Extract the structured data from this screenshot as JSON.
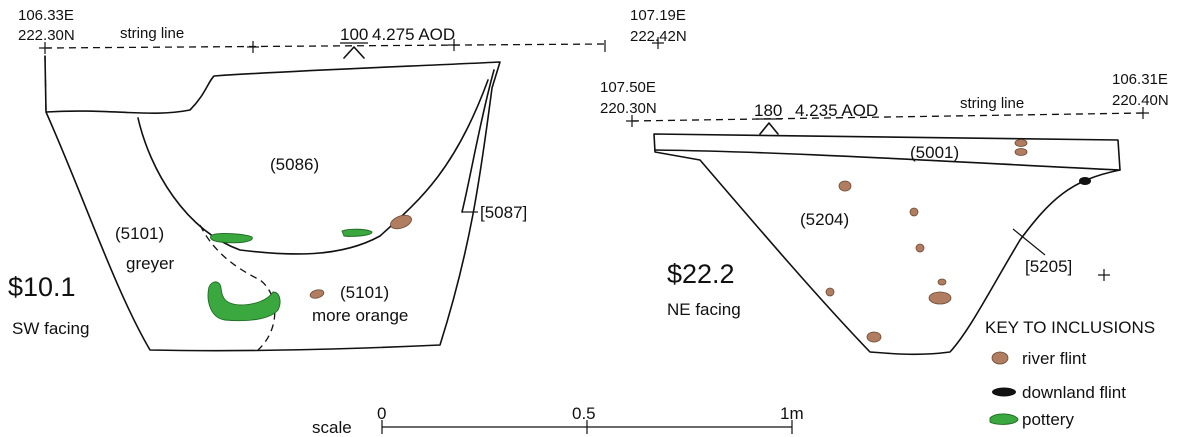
{
  "section_sw": {
    "id": "$10.1",
    "facing": "SW facing",
    "left_coord_e": "106.33E",
    "left_coord_n": "222.30N",
    "right_coord_e": "107.19E",
    "right_coord_n": "222.42N",
    "string_line": "string line",
    "datum_number": "100",
    "datum_level": "4.275 AOD",
    "fill_upper": "(5086)",
    "fill_lower_left": "(5101)",
    "fill_lower_left_note": "greyer",
    "fill_lower_right": "(5101)",
    "fill_lower_right_note": "more orange",
    "cut": "[5087]"
  },
  "section_ne": {
    "id": "$22.2",
    "facing": "NE facing",
    "left_coord_e": "107.50E",
    "left_coord_n": "220.30N",
    "right_coord_e": "106.31E",
    "right_coord_n": "220.40N",
    "string_line": "string line",
    "datum_number": "180",
    "datum_level": "4.235 AOD",
    "fill_upper": "(5001)",
    "fill_main": "(5204)",
    "cut": "[5205]"
  },
  "scale": {
    "label": "scale",
    "ticks": [
      "0",
      "0.5",
      "1m"
    ]
  },
  "key": {
    "title": "KEY TO INCLUSIONS",
    "items": [
      {
        "label": "river flint",
        "icon": "river-flint-icon",
        "color": "#b07d60"
      },
      {
        "label": "downland flint",
        "icon": "downland-flint-icon",
        "color": "#111111"
      },
      {
        "label": "pottery",
        "icon": "pottery-icon",
        "color": "#3aa83e"
      }
    ]
  }
}
